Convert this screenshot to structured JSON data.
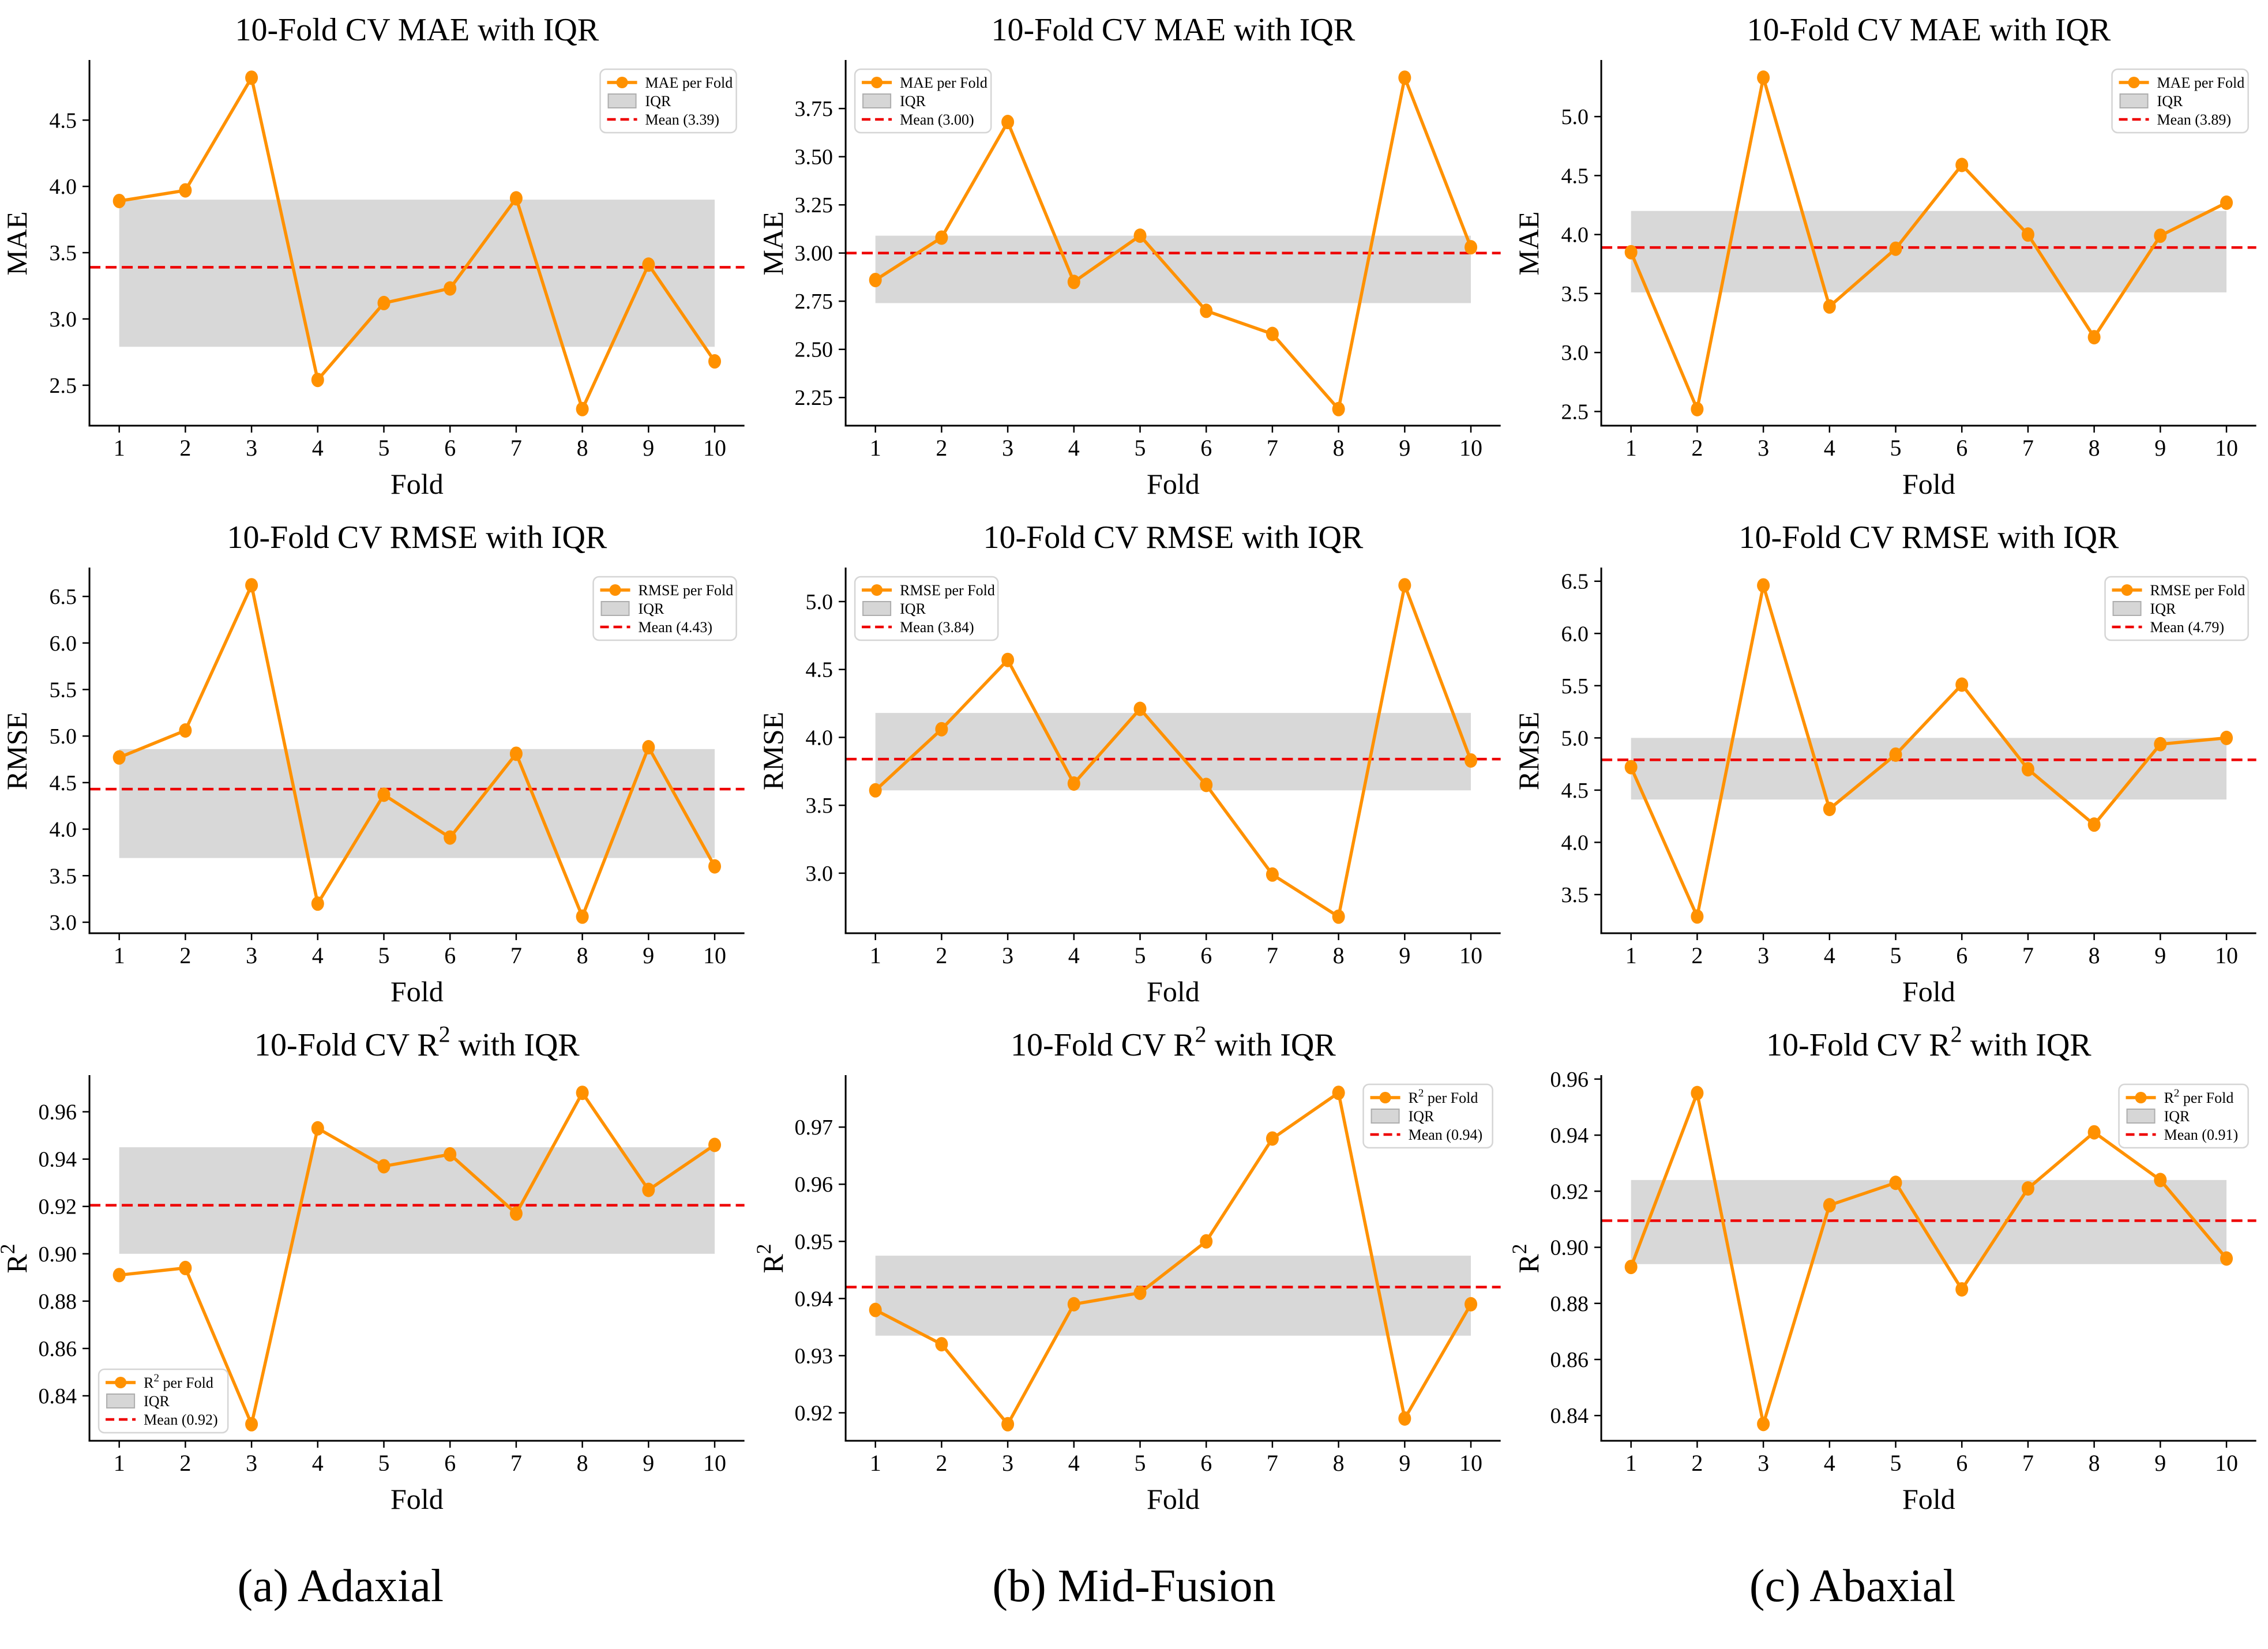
{
  "figure": {
    "captions": [
      {
        "label": "(a) Adaxial"
      },
      {
        "label": "(b) Mid-Fusion"
      },
      {
        "label": "(c) Abaxial"
      }
    ],
    "colors": {
      "line": "#FF9100",
      "marker": "#FF9100",
      "iqr_fill": "#D6D6D6",
      "iqr_edge": "#ADADAD",
      "mean_line": "#EE0000",
      "axis": "#000000",
      "text": "#000000",
      "legend_border": "#D5D5D5",
      "legend_bg": "#FFFFFF",
      "background": "#FFFFFF"
    }
  },
  "chart_data": [
    {
      "type": "line",
      "panel": "adaxial",
      "metric": "MAE",
      "title": "10-Fold CV MAE with IQR",
      "xlabel": "Fold",
      "ylabel": "MAE",
      "x": [
        1,
        2,
        3,
        4,
        5,
        6,
        7,
        8,
        9,
        10
      ],
      "values": [
        3.89,
        3.97,
        4.82,
        2.54,
        3.12,
        3.23,
        3.91,
        2.32,
        3.41,
        2.68
      ],
      "mean_value": 3.39,
      "iqr": [
        2.79,
        3.9
      ],
      "xlim": [
        0.55,
        10.45
      ],
      "ylim": [
        2.195,
        4.945
      ],
      "yticks": [
        2.5,
        3.0,
        3.5,
        4.0,
        4.5
      ],
      "ytick_decimals": 1,
      "grid": false,
      "legend": {
        "position": "top-right",
        "items": [
          {
            "glyph": "line-marker",
            "label": "MAE per Fold"
          },
          {
            "glyph": "patch",
            "label": "IQR"
          },
          {
            "glyph": "dashed",
            "label": "Mean (3.39)"
          }
        ]
      }
    },
    {
      "type": "line",
      "panel": "mid-fusion",
      "metric": "MAE",
      "title": "10-Fold CV MAE with IQR",
      "xlabel": "Fold",
      "ylabel": "MAE",
      "x": [
        1,
        2,
        3,
        4,
        5,
        6,
        7,
        8,
        9,
        10
      ],
      "values": [
        2.86,
        3.08,
        3.68,
        2.85,
        3.09,
        2.7,
        2.58,
        2.19,
        3.91,
        3.03
      ],
      "mean_value": 3.0,
      "iqr": [
        2.74,
        3.09
      ],
      "xlim": [
        0.55,
        10.45
      ],
      "ylim": [
        2.104,
        3.996
      ],
      "yticks": [
        2.25,
        2.5,
        2.75,
        3.0,
        3.25,
        3.5,
        3.75
      ],
      "ytick_decimals": 2,
      "grid": false,
      "legend": {
        "position": "top-left",
        "items": [
          {
            "glyph": "line-marker",
            "label": "MAE per Fold"
          },
          {
            "glyph": "patch",
            "label": "IQR"
          },
          {
            "glyph": "dashed",
            "label": "Mean (3.00)"
          }
        ]
      }
    },
    {
      "type": "line",
      "panel": "abaxial",
      "metric": "MAE",
      "title": "10-Fold CV MAE with IQR",
      "xlabel": "Fold",
      "ylabel": "MAE",
      "x": [
        1,
        2,
        3,
        4,
        5,
        6,
        7,
        8,
        9,
        10
      ],
      "values": [
        3.85,
        2.52,
        5.33,
        3.39,
        3.88,
        4.59,
        4.0,
        3.13,
        3.99,
        4.27
      ],
      "mean_value": 3.89,
      "iqr": [
        3.51,
        4.2
      ],
      "xlim": [
        0.55,
        10.45
      ],
      "ylim": [
        2.38,
        5.47
      ],
      "yticks": [
        2.5,
        3.0,
        3.5,
        4.0,
        4.5,
        5.0
      ],
      "ytick_decimals": 1,
      "grid": false,
      "legend": {
        "position": "top-right",
        "items": [
          {
            "glyph": "line-marker",
            "label": "MAE per Fold"
          },
          {
            "glyph": "patch",
            "label": "IQR"
          },
          {
            "glyph": "dashed",
            "label": "Mean (3.89)"
          }
        ]
      }
    },
    {
      "type": "line",
      "panel": "adaxial",
      "metric": "RMSE",
      "title": "10-Fold CV RMSE with IQR",
      "xlabel": "Fold",
      "ylabel": "RMSE",
      "x": [
        1,
        2,
        3,
        4,
        5,
        6,
        7,
        8,
        9,
        10
      ],
      "values": [
        4.77,
        5.06,
        6.62,
        3.2,
        4.37,
        3.91,
        4.81,
        3.06,
        4.88,
        3.6
      ],
      "mean_value": 4.43,
      "iqr": [
        3.69,
        4.86
      ],
      "xlim": [
        0.55,
        10.45
      ],
      "ylim": [
        2.882,
        6.798
      ],
      "yticks": [
        3.0,
        3.5,
        4.0,
        4.5,
        5.0,
        5.5,
        6.0,
        6.5
      ],
      "ytick_decimals": 1,
      "grid": false,
      "legend": {
        "position": "top-right",
        "items": [
          {
            "glyph": "line-marker",
            "label": "RMSE per Fold"
          },
          {
            "glyph": "patch",
            "label": "IQR"
          },
          {
            "glyph": "dashed",
            "label": "Mean (4.43)"
          }
        ]
      }
    },
    {
      "type": "line",
      "panel": "mid-fusion",
      "metric": "RMSE",
      "title": "10-Fold CV RMSE with IQR",
      "xlabel": "Fold",
      "ylabel": "RMSE",
      "x": [
        1,
        2,
        3,
        4,
        5,
        6,
        7,
        8,
        9,
        10
      ],
      "values": [
        3.61,
        4.06,
        4.57,
        3.66,
        4.21,
        3.65,
        2.99,
        2.68,
        5.12,
        3.83
      ],
      "mean_value": 3.84,
      "iqr": [
        3.61,
        4.18
      ],
      "xlim": [
        0.55,
        10.45
      ],
      "ylim": [
        2.558,
        5.242
      ],
      "yticks": [
        3.0,
        3.5,
        4.0,
        4.5,
        5.0
      ],
      "ytick_decimals": 1,
      "grid": false,
      "legend": {
        "position": "top-left",
        "items": [
          {
            "glyph": "line-marker",
            "label": "RMSE per Fold"
          },
          {
            "glyph": "patch",
            "label": "IQR"
          },
          {
            "glyph": "dashed",
            "label": "Mean (3.84)"
          }
        ]
      }
    },
    {
      "type": "line",
      "panel": "abaxial",
      "metric": "RMSE",
      "title": "10-Fold CV RMSE with IQR",
      "xlabel": "Fold",
      "ylabel": "RMSE",
      "x": [
        1,
        2,
        3,
        4,
        5,
        6,
        7,
        8,
        9,
        10
      ],
      "values": [
        4.72,
        3.29,
        6.46,
        4.32,
        4.84,
        5.51,
        4.7,
        4.17,
        4.94,
        5.0
      ],
      "mean_value": 4.79,
      "iqr": [
        4.41,
        5.0
      ],
      "xlim": [
        0.55,
        10.45
      ],
      "ylim": [
        3.13,
        6.62
      ],
      "yticks": [
        3.5,
        4.0,
        4.5,
        5.0,
        5.5,
        6.0,
        6.5
      ],
      "ytick_decimals": 1,
      "grid": false,
      "legend": {
        "position": "top-right",
        "items": [
          {
            "glyph": "line-marker",
            "label": "RMSE per Fold"
          },
          {
            "glyph": "patch",
            "label": "IQR"
          },
          {
            "glyph": "dashed",
            "label": "Mean (4.79)"
          }
        ]
      }
    },
    {
      "type": "line",
      "panel": "adaxial",
      "metric": "R2",
      "title": "10-Fold CV R² with IQR",
      "xlabel": "Fold",
      "ylabel": "R²",
      "x": [
        1,
        2,
        3,
        4,
        5,
        6,
        7,
        8,
        9,
        10
      ],
      "values": [
        0.891,
        0.894,
        0.828,
        0.953,
        0.937,
        0.942,
        0.917,
        0.968,
        0.927,
        0.946
      ],
      "mean_value": 0.9205,
      "iqr": [
        0.9,
        0.945
      ],
      "xlim": [
        0.55,
        10.45
      ],
      "ylim": [
        0.821,
        0.975
      ],
      "yticks": [
        0.84,
        0.86,
        0.88,
        0.9,
        0.92,
        0.94,
        0.96
      ],
      "ytick_decimals": 2,
      "grid": false,
      "legend": {
        "position": "bottom-left",
        "items": [
          {
            "glyph": "line-marker",
            "label": "R² per Fold"
          },
          {
            "glyph": "patch",
            "label": "IQR"
          },
          {
            "glyph": "dashed",
            "label": "Mean (0.92)"
          }
        ]
      }
    },
    {
      "type": "line",
      "panel": "mid-fusion",
      "metric": "R2",
      "title": "10-Fold CV R² with IQR",
      "xlabel": "Fold",
      "ylabel": "R²",
      "x": [
        1,
        2,
        3,
        4,
        5,
        6,
        7,
        8,
        9,
        10
      ],
      "values": [
        0.938,
        0.932,
        0.918,
        0.939,
        0.941,
        0.95,
        0.968,
        0.976,
        0.919,
        0.939
      ],
      "mean_value": 0.942,
      "iqr": [
        0.9335,
        0.9475
      ],
      "xlim": [
        0.55,
        10.45
      ],
      "ylim": [
        0.9151,
        0.9789
      ],
      "yticks": [
        0.92,
        0.93,
        0.94,
        0.95,
        0.96,
        0.97
      ],
      "ytick_decimals": 2,
      "grid": false,
      "legend": {
        "position": "top-right",
        "items": [
          {
            "glyph": "line-marker",
            "label": "R² per Fold"
          },
          {
            "glyph": "patch",
            "label": "IQR"
          },
          {
            "glyph": "dashed",
            "label": "Mean (0.94)"
          }
        ]
      }
    },
    {
      "type": "line",
      "panel": "abaxial",
      "metric": "R2",
      "title": "10-Fold CV R² with IQR",
      "xlabel": "Fold",
      "ylabel": "R²",
      "x": [
        1,
        2,
        3,
        4,
        5,
        6,
        7,
        8,
        9,
        10
      ],
      "values": [
        0.893,
        0.955,
        0.837,
        0.915,
        0.923,
        0.885,
        0.921,
        0.941,
        0.924,
        0.896
      ],
      "mean_value": 0.9095,
      "iqr": [
        0.894,
        0.924
      ],
      "xlim": [
        0.55,
        10.45
      ],
      "ylim": [
        0.831,
        0.961
      ],
      "yticks": [
        0.84,
        0.86,
        0.88,
        0.9,
        0.92,
        0.94,
        0.96
      ],
      "ytick_decimals": 2,
      "grid": false,
      "legend": {
        "position": "top-right",
        "items": [
          {
            "glyph": "line-marker",
            "label": "R² per Fold"
          },
          {
            "glyph": "patch",
            "label": "IQR"
          },
          {
            "glyph": "dashed",
            "label": "Mean (0.91)"
          }
        ]
      }
    }
  ]
}
